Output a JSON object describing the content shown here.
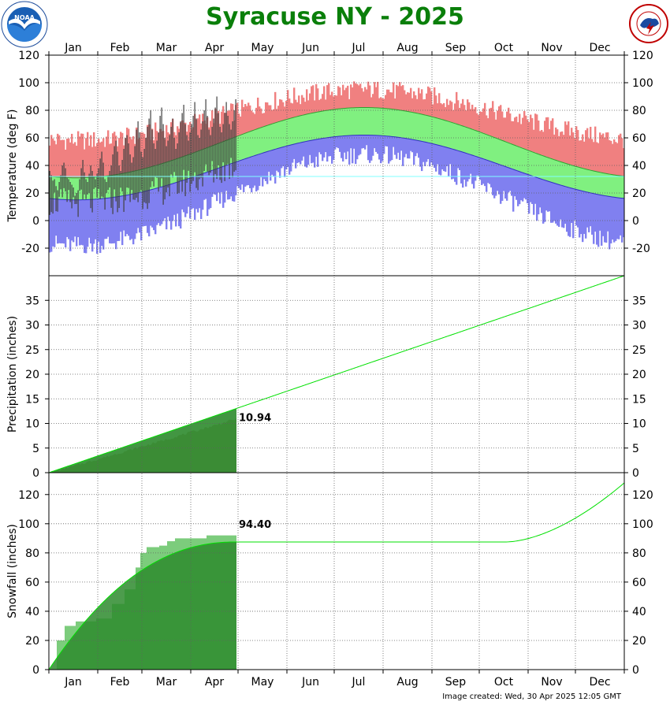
{
  "title": "Syracuse NY - 2025",
  "footer": "Image created: Wed, 30 Apr 2025 12:05 GMT",
  "logos": {
    "noaa": {
      "text": "NOAA",
      "ring_text": "NATIONAL OCEANIC AND ATMOSPHERIC ADMINISTRATION"
    },
    "nws": {
      "ring_text": "NATIONAL WEATHER SERVICE"
    }
  },
  "colors": {
    "title": "#0a7f0a",
    "record_high": "#f08080",
    "normal_range": "#80f080",
    "record_low": "#8080f0",
    "observed": "#404040",
    "cum_fill": "#2e8b2e",
    "normal_line": "#00e000",
    "snow_fill": "#7ccc7c"
  },
  "chart_data": [
    {
      "type": "bar",
      "name": "temperature",
      "ylabel": "Temperature (deg F)",
      "ylim": [
        -40,
        120
      ],
      "yticks": [
        -20,
        0,
        20,
        40,
        60,
        80,
        100,
        120
      ],
      "months": [
        "Jan",
        "Feb",
        "Mar",
        "Apr",
        "May",
        "Jun",
        "Jul",
        "Aug",
        "Sep",
        "Oct",
        "Nov",
        "Dec"
      ],
      "normal_high": {
        "min": 31,
        "min_day": 20,
        "max": 82,
        "max_day": 200
      },
      "normal_low": {
        "min": 15,
        "min_day": 25,
        "max": 62,
        "max_day": 200
      },
      "record_high_typical": {
        "min": 58,
        "max": 95
      },
      "record_low_typical": {
        "min": -18,
        "max": 48
      },
      "observed_through_day": 119,
      "observed_highs_sample": [
        36,
        33,
        29,
        30,
        25,
        22,
        28,
        33,
        40,
        42,
        38,
        31,
        30,
        28,
        26,
        24,
        18,
        20,
        22,
        30,
        38,
        44,
        35,
        30,
        28,
        34,
        40,
        36,
        32,
        30,
        34,
        38,
        45,
        50,
        42,
        30,
        28,
        32,
        36,
        40,
        48,
        54,
        58,
        50,
        40,
        36,
        44,
        52,
        60,
        62,
        56,
        48,
        42,
        46,
        54,
        66,
        72,
        64,
        50,
        46,
        52,
        60,
        68,
        74,
        80,
        66,
        56,
        52,
        58,
        64,
        76,
        82,
        70,
        60,
        54,
        58,
        62,
        68,
        74,
        60,
        52,
        56,
        64,
        72,
        78,
        84,
        70,
        62,
        58,
        64,
        70,
        76,
        86,
        74,
        62,
        60,
        66,
        72,
        80,
        88,
        76,
        66,
        62,
        68,
        74,
        82,
        90,
        78,
        68,
        64,
        70,
        78,
        86,
        76,
        70,
        66,
        72,
        80,
        88
      ],
      "grid": true
    },
    {
      "type": "area",
      "name": "precipitation",
      "ylabel": "Precipitation (inches)",
      "ylim": [
        0,
        40
      ],
      "yticks": [
        0,
        5,
        10,
        15,
        20,
        25,
        30,
        35
      ],
      "observed_total": 10.94,
      "observed_total_label": "10.94",
      "observed_through_day": 119,
      "normal_annual_total": 40.0,
      "grid": true
    },
    {
      "type": "area",
      "name": "snowfall",
      "ylabel": "Snowfall (inches)",
      "ylim": [
        0,
        135
      ],
      "yticks": [
        0,
        20,
        40,
        60,
        80,
        100,
        120
      ],
      "observed_total": 94.4,
      "observed_total_label": "94.40",
      "observed_through_day": 119,
      "normal_season_total_apr": 87.5,
      "normal_end_dec": 128,
      "observed_curve": [
        [
          0,
          0
        ],
        [
          5,
          20
        ],
        [
          10,
          30
        ],
        [
          17,
          33
        ],
        [
          30,
          35
        ],
        [
          40,
          45
        ],
        [
          48,
          55
        ],
        [
          55,
          70
        ],
        [
          58,
          80
        ],
        [
          62,
          84
        ],
        [
          70,
          85
        ],
        [
          75,
          88
        ],
        [
          80,
          90
        ],
        [
          100,
          92
        ],
        [
          119,
          94.4
        ]
      ],
      "grid": true
    }
  ]
}
